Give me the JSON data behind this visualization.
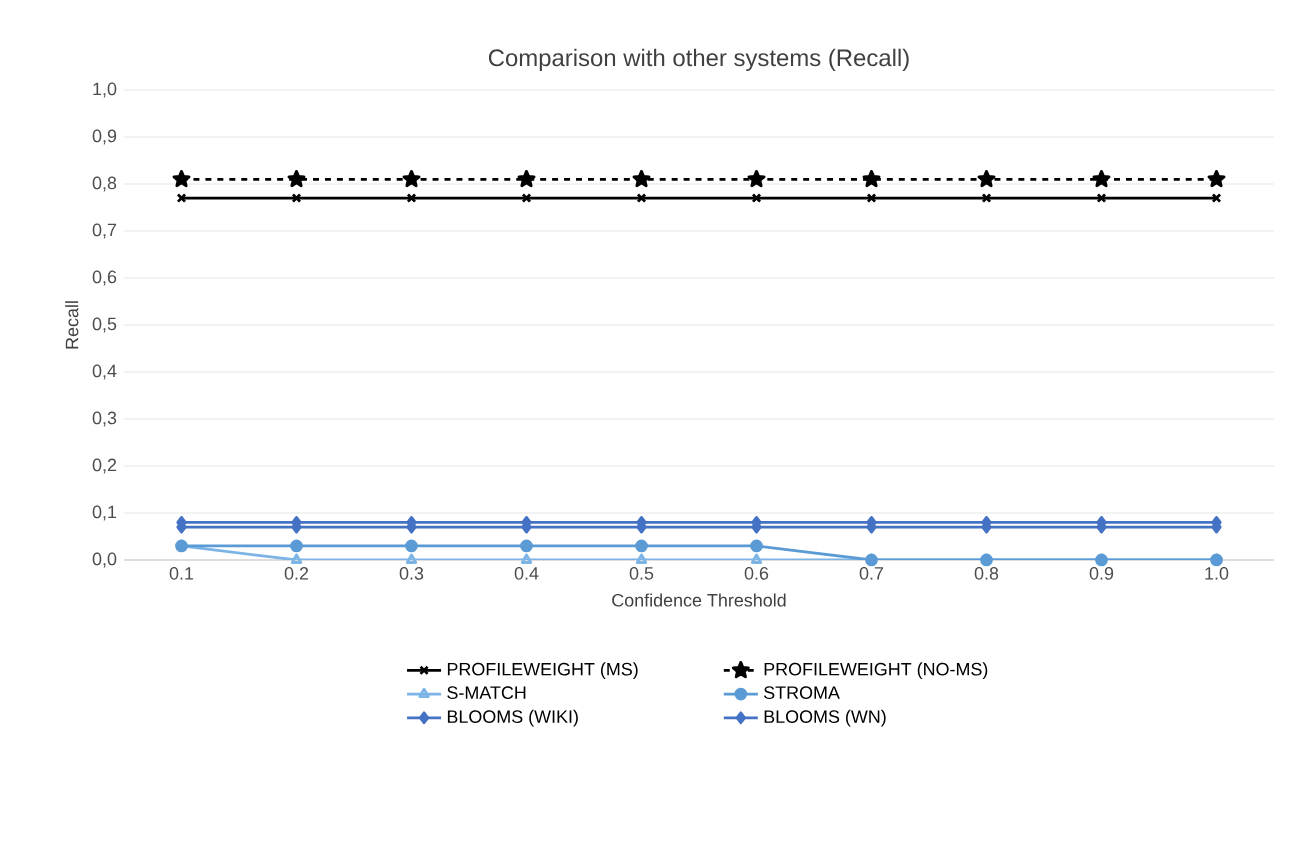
{
  "chart_data": {
    "type": "line",
    "title": "Comparison with other systems (Recall)",
    "xlabel": "Confidence Threshold",
    "ylabel": "Recall",
    "categories": [
      "0.1",
      "0.2",
      "0.3",
      "0.4",
      "0.5",
      "0.6",
      "0.7",
      "0.8",
      "0.9",
      "1.0"
    ],
    "ylim": [
      0,
      1
    ],
    "yticks": [
      {
        "value": 0,
        "label": "0,0"
      },
      {
        "value": 0.1,
        "label": "0,1"
      },
      {
        "value": 0.2,
        "label": "0,2"
      },
      {
        "value": 0.3,
        "label": "0,3"
      },
      {
        "value": 0.4,
        "label": "0,4"
      },
      {
        "value": 0.5,
        "label": "0,5"
      },
      {
        "value": 0.6,
        "label": "0,6"
      },
      {
        "value": 0.7,
        "label": "0,7"
      },
      {
        "value": 0.8,
        "label": "0,8"
      },
      {
        "value": 0.9,
        "label": "0,9"
      },
      {
        "value": 1,
        "label": "1,0"
      }
    ],
    "grid": "y",
    "legend": "bottom",
    "series": [
      {
        "name": "PROFILEWEIGHT (MS)",
        "color": "#000000",
        "marker": "cross",
        "line_style": "solid",
        "values": [
          0.77,
          0.77,
          0.77,
          0.77,
          0.77,
          0.77,
          0.77,
          0.77,
          0.77,
          0.77
        ]
      },
      {
        "name": "PROFILEWEIGHT (NO-MS)",
        "color": "#000000",
        "marker": "star",
        "line_style": "dashed",
        "values": [
          0.81,
          0.81,
          0.81,
          0.81,
          0.81,
          0.81,
          0.81,
          0.81,
          0.81,
          0.81
        ]
      },
      {
        "name": "S-MATCH",
        "color": "#7cb4e6",
        "marker": "triangle",
        "line_style": "solid",
        "values": [
          0.03,
          0,
          0,
          0,
          0,
          0,
          0,
          0,
          0,
          0
        ]
      },
      {
        "name": "STROMA",
        "color": "#5b9bd5",
        "marker": "circle",
        "line_style": "solid",
        "values": [
          0.03,
          0.03,
          0.03,
          0.03,
          0.03,
          0.03,
          0,
          0,
          0,
          0
        ]
      },
      {
        "name": "BLOOMS (WIKI)",
        "color": "#4472c4",
        "marker": "diamond",
        "line_style": "solid",
        "values": [
          0.08,
          0.08,
          0.08,
          0.08,
          0.08,
          0.08,
          0.08,
          0.08,
          0.08,
          0.08
        ]
      },
      {
        "name": "BLOOMS (WN)",
        "color": "#4472c4",
        "marker": "diamond",
        "line_style": "solid",
        "values": [
          0.07,
          0.07,
          0.07,
          0.07,
          0.07,
          0.07,
          0.07,
          0.07,
          0.07,
          0.07
        ]
      }
    ]
  }
}
